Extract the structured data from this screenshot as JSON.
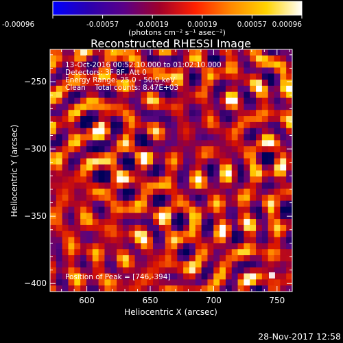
{
  "chart_data": {
    "type": "heatmap",
    "title": "Reconstructed RHESSI Image",
    "xlabel": "Heliocentric X (arcsec)",
    "ylabel": "Heliocentric Y (arcsec)",
    "xlim": [
      571,
      762
    ],
    "ylim": [
      -406,
      -226
    ],
    "x_ticks": [
      600,
      650,
      700,
      750
    ],
    "y_ticks": [
      -250,
      -300,
      -350,
      -400
    ],
    "grid": false,
    "colormap": "hot (black-blue-purple-red-yellow-white)",
    "colorbar": {
      "ticks": [
        "-0.00096",
        "-0.00057",
        "-0.00019",
        "0.00019",
        "0.00057",
        "0.00096"
      ],
      "unit": "(photons cm⁻² s⁻¹ asec⁻²)",
      "range": [
        -0.00096,
        0.00096
      ],
      "colors": [
        "#0000ff",
        "#2a00b0",
        "#5a0088",
        "#a0002a",
        "#ff2000",
        "#ff8800",
        "#ffd400",
        "#ffffff"
      ]
    },
    "annotations": [
      "13-Oct-2016 00:52:10.000 to 01:02:10.000",
      "Detectors: 3F 8F, Att 0",
      "Energy Range: 25.0 - 50.0 keV",
      "Clean    Total counts: 8.47E+03"
    ],
    "peak": {
      "label": "Position of Peak = [",
      "value": "746,-394",
      "x": 746,
      "y": -394
    },
    "timestamp": "28-Nov-2017 12:58"
  }
}
